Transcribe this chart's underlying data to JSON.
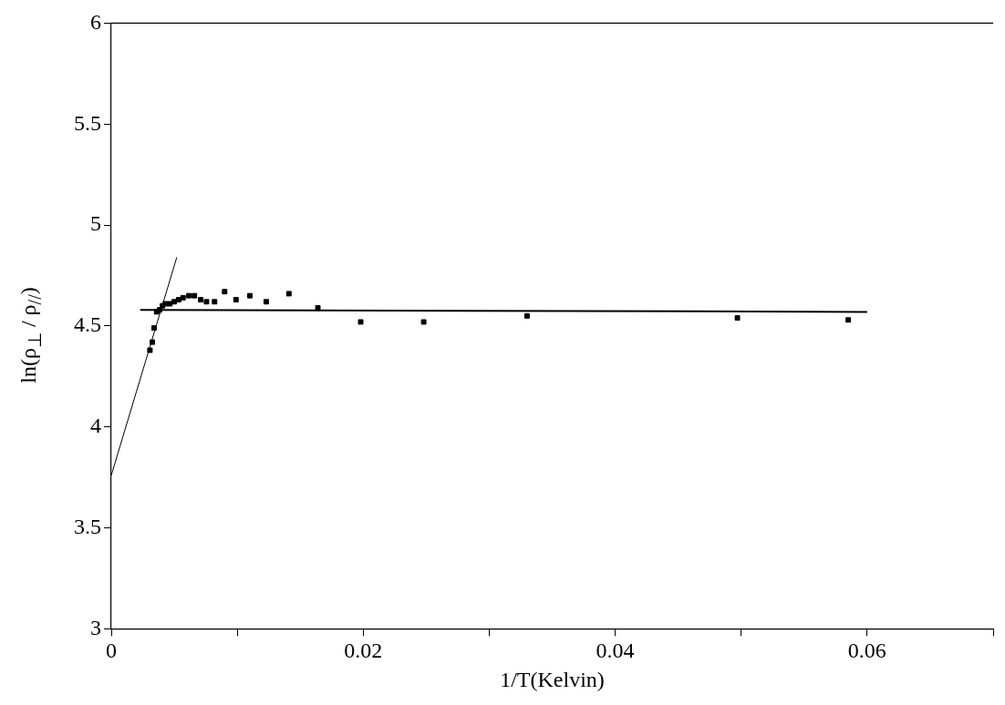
{
  "chart_data": {
    "type": "scatter",
    "xlabel": "1/T(Kelvin)",
    "ylabel": "ln(ρ$_{⊥}$ / ρ$_{//}$)",
    "xlim": [
      0,
      0.07
    ],
    "ylim": [
      3,
      6
    ],
    "xticks": [
      0,
      {
        "value": 0.01,
        "label": null
      },
      0.02,
      {
        "value": 0.03,
        "label": null
      },
      0.04,
      {
        "value": 0.05,
        "label": null
      },
      0.06,
      {
        "value": 0.07,
        "label": null
      }
    ],
    "yticks": [
      3,
      3.5,
      4,
      4.5,
      5,
      5.5,
      6
    ],
    "grid": false,
    "legend": false,
    "marker": "square",
    "series": [
      {
        "color": "#000000",
        "x": [
          0.00307,
          0.00326,
          0.0034,
          0.0036,
          0.00384,
          0.00407,
          0.0043,
          0.00465,
          0.005,
          0.00535,
          0.0057,
          0.00616,
          0.0066,
          0.0071,
          0.00756,
          0.0082,
          0.009,
          0.0099,
          0.011,
          0.0123,
          0.0141,
          0.0164,
          0.0198,
          0.0248,
          0.033,
          0.0497,
          0.0585
        ],
        "values": [
          4.38,
          4.42,
          4.49,
          4.57,
          4.58,
          4.6,
          4.61,
          4.61,
          4.62,
          4.63,
          4.64,
          4.65,
          4.65,
          4.63,
          4.62,
          4.62,
          4.67,
          4.63,
          4.65,
          4.62,
          4.66,
          4.59,
          4.52,
          4.52,
          4.55,
          4.54,
          4.53
        ]
      },
      {
        "type": "line",
        "color": "#000000",
        "marker": "none",
        "line_style": "solid",
        "x": [
          0.0023,
          0.06
        ],
        "values": [
          4.58,
          4.57
        ]
      },
      {
        "type": "line",
        "color": "#000000",
        "marker": "none",
        "line_style": "solid",
        "x": [
          0,
          0.0052
        ],
        "values": [
          3.76,
          4.84
        ]
      }
    ]
  }
}
